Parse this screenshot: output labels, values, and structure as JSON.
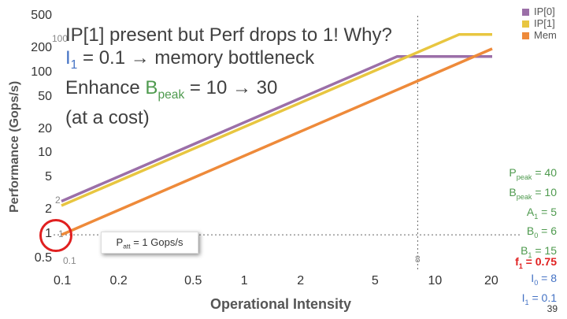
{
  "headline": {
    "line1": "IP[1] present but Perf drops to 1! Why?",
    "line2_main": "I",
    "line2_sub": "1",
    "line2_rest": " = 0.1 → memory bottleneck",
    "line3_pre": "Enhance ",
    "line3_b": "B",
    "line3_sub": "peak",
    "line3_rest": " = 10 → 30",
    "line4": "(at a cost)"
  },
  "params": {
    "ppeak_main": "P",
    "ppeak_sub": "peak",
    "ppeak_val": " = 40",
    "bpeak_main": "B",
    "bpeak_sub": "peak",
    "bpeak_val": " = 10",
    "a1_main": "A",
    "a1_sub": "1",
    "a1_val": " = 5",
    "b0_main": "B",
    "b0_sub": "0",
    "b0_val": " = 6",
    "b1_main": "B",
    "b1_sub": "1",
    "b1_val": " = 15",
    "f1_main": "f",
    "f1_sub": "1",
    "f1_val": " = 0.75",
    "i0_main": "I",
    "i0_sub": "0",
    "i0_val": " = 8",
    "i1_main": "I",
    "i1_sub": "1",
    "i1_val": " = 0.1"
  },
  "annotation": {
    "patt_main": "P",
    "patt_sub": "att",
    "patt_val": " = 1 Gops/s"
  },
  "page_number": "39",
  "colors": {
    "ip0": "#9b6fa8",
    "ip1": "#e8c640",
    "mem": "#ee8a3a",
    "circle": "#e02020"
  },
  "chart_data": {
    "type": "line",
    "xlabel": "Operational Intensity",
    "ylabel": "Performance (Gops/s)",
    "x_scale": "log",
    "y_scale": "log",
    "xlim": [
      0.1,
      20
    ],
    "ylim": [
      0.5,
      500
    ],
    "xticks": [
      "0.1",
      "0.2",
      "0.5",
      "1",
      "2",
      "5",
      "10",
      "20"
    ],
    "yticks": [
      "0.5",
      "1",
      "2",
      "5",
      "10",
      "20",
      "50",
      "100",
      "200",
      "500"
    ],
    "old_labels": [
      "0.1",
      "1",
      "2",
      "100",
      "8"
    ],
    "series": [
      {
        "name": "IP[0]",
        "x": [
          0.1,
          6.2,
          20
        ],
        "y": [
          2.6,
          160,
          160
        ]
      },
      {
        "name": "IP[1]",
        "x": [
          0.1,
          13.3,
          20
        ],
        "y": [
          2.3,
          300,
          300
        ]
      },
      {
        "name": "Mem",
        "x": [
          0.1,
          20
        ],
        "y": [
          1,
          200
        ]
      }
    ],
    "reference_lines": {
      "x": 8,
      "y": 1
    },
    "legend_position": "top-right"
  }
}
